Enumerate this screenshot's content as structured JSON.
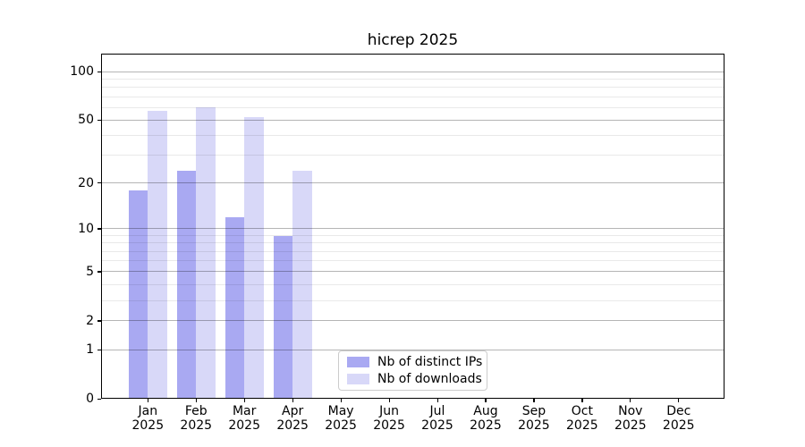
{
  "title": "hicrep 2025",
  "chart_data": {
    "type": "bar",
    "title": "hicrep 2025",
    "categories": [
      "Jan",
      "Feb",
      "Mar",
      "Apr",
      "May",
      "Jun",
      "Jul",
      "Aug",
      "Sep",
      "Oct",
      "Nov",
      "Dec"
    ],
    "category_year": "2025",
    "series": [
      {
        "name": "Nb of distinct IPs",
        "color": "#a9a9f2",
        "values": [
          18,
          24,
          12,
          9,
          null,
          null,
          null,
          null,
          null,
          null,
          null,
          null
        ]
      },
      {
        "name": "Nb of downloads",
        "color": "#d8d8f8",
        "values": [
          57,
          60,
          52,
          24,
          null,
          null,
          null,
          null,
          null,
          null,
          null,
          null
        ]
      }
    ],
    "y_axis": {
      "scale": "log1p",
      "major_ticks": [
        0,
        1,
        2,
        5,
        10,
        20,
        50,
        100
      ],
      "minor_ticks": [
        3,
        4,
        6,
        7,
        8,
        9,
        30,
        40,
        60,
        70,
        80,
        90
      ],
      "max_value": 129
    },
    "grid": "horizontal",
    "legend_position": "lower-center"
  }
}
